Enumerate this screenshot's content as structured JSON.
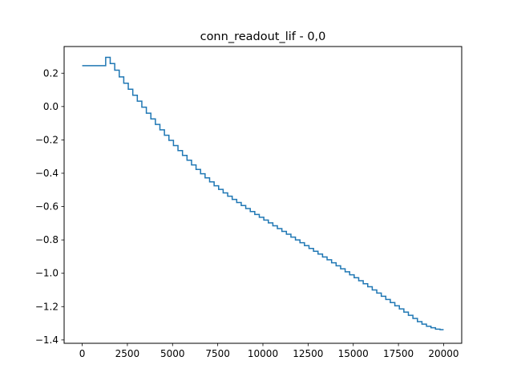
{
  "chart_data": {
    "type": "line",
    "title": "conn_readout_lif - 0,0",
    "xlabel": "",
    "ylabel": "",
    "xlim": [
      -1000,
      21000
    ],
    "ylim": [
      -1.42,
      0.36
    ],
    "x_ticks": [
      0,
      2500,
      5000,
      7500,
      10000,
      12500,
      15000,
      17500,
      20000
    ],
    "x_tick_labels": [
      "0",
      "2500",
      "5000",
      "7500",
      "10000",
      "12500",
      "15000",
      "17500",
      "20000"
    ],
    "y_ticks": [
      0.2,
      0.0,
      -0.2,
      -0.4,
      -0.6,
      -0.8,
      -1.0,
      -1.2,
      -1.4
    ],
    "y_tick_labels": [
      "0.2",
      "0.0",
      "−0.2",
      "−0.4",
      "−0.6",
      "−0.8",
      "−1.0",
      "−1.2",
      "−1.4"
    ],
    "grid": false,
    "step": true,
    "line_color": "#1f77b4",
    "series": [
      {
        "x": [
          0,
          1300,
          1550,
          1800,
          2050,
          2300,
          2550,
          2800,
          3050,
          3300,
          3550,
          3800,
          4050,
          4300,
          4550,
          4800,
          5050,
          5300,
          5550,
          5800,
          6050,
          6300,
          6550,
          6800,
          7050,
          7300,
          7550,
          7800,
          8050,
          8300,
          8550,
          8800,
          9050,
          9300,
          9550,
          9800,
          10050,
          10300,
          10550,
          10800,
          11050,
          11300,
          11550,
          11800,
          12050,
          12300,
          12550,
          12800,
          13050,
          13300,
          13550,
          13800,
          14050,
          14300,
          14550,
          14800,
          15050,
          15300,
          15550,
          15800,
          16050,
          16300,
          16550,
          16800,
          17050,
          17300,
          17550,
          17800,
          18050,
          18300,
          18550,
          18800,
          19050,
          19300,
          19550,
          19800,
          20000
        ],
        "y": [
          0.245,
          0.295,
          0.258,
          0.218,
          0.178,
          0.14,
          0.104,
          0.068,
          0.032,
          -0.004,
          -0.04,
          -0.074,
          -0.107,
          -0.14,
          -0.172,
          -0.203,
          -0.234,
          -0.264,
          -0.293,
          -0.322,
          -0.35,
          -0.377,
          -0.403,
          -0.428,
          -0.452,
          -0.475,
          -0.497,
          -0.518,
          -0.538,
          -0.557,
          -0.576,
          -0.594,
          -0.612,
          -0.63,
          -0.647,
          -0.664,
          -0.681,
          -0.698,
          -0.715,
          -0.732,
          -0.749,
          -0.766,
          -0.783,
          -0.8,
          -0.817,
          -0.834,
          -0.851,
          -0.868,
          -0.885,
          -0.902,
          -0.919,
          -0.937,
          -0.955,
          -0.973,
          -0.991,
          -1.009,
          -1.027,
          -1.045,
          -1.063,
          -1.081,
          -1.1,
          -1.119,
          -1.138,
          -1.157,
          -1.176,
          -1.195,
          -1.214,
          -1.233,
          -1.252,
          -1.271,
          -1.29,
          -1.305,
          -1.318,
          -1.327,
          -1.335,
          -1.338,
          -1.338
        ]
      }
    ]
  }
}
